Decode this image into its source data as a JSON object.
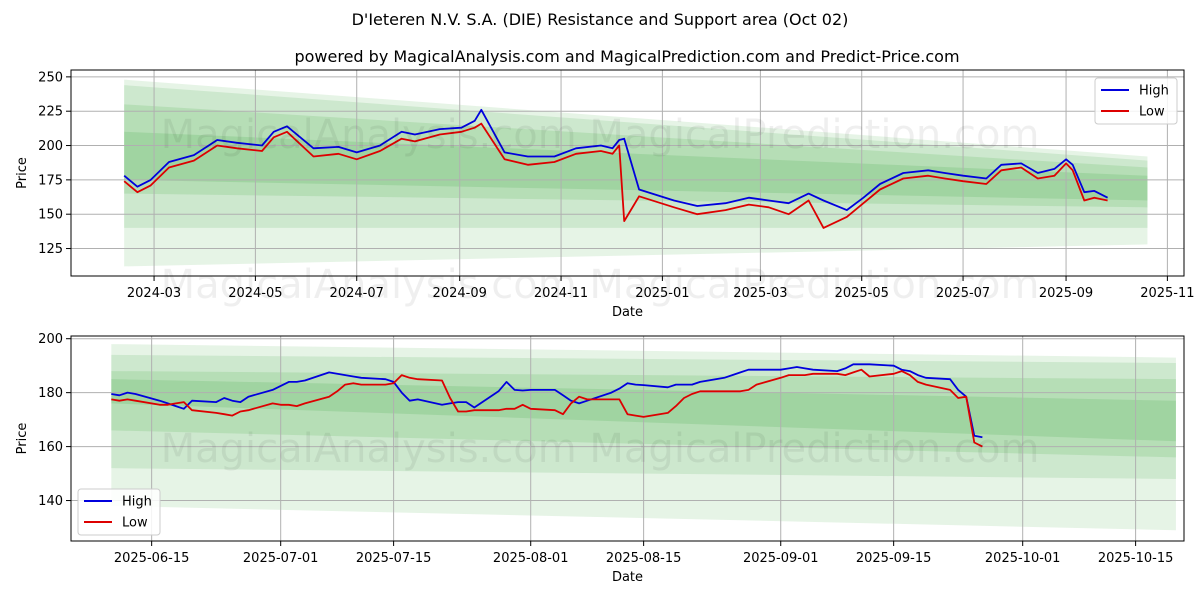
{
  "title": "D'Ieteren N.V. S.A. (DIE) Resistance and Support area (Oct 02)",
  "subtitle": "powered by MagicalAnalysis.com and MagicalPrediction.com and Predict-Price.com",
  "watermark": "MagicalAnalysis.com    MagicalPrediction.com",
  "colors": {
    "high": "#0000dd",
    "low": "#dd0000",
    "band": "#4caf50",
    "grid": "#b0b0b0"
  },
  "chart_data": [
    {
      "type": "line",
      "xlabel": "Date",
      "ylabel": "Price",
      "x_type": "date",
      "xlim": [
        "2024-01-11",
        "2025-11-11"
      ],
      "ylim": [
        105,
        255
      ],
      "x_ticks": [
        "2024-03",
        "2024-05",
        "2024-07",
        "2024-09",
        "2024-11",
        "2025-01",
        "2025-03",
        "2025-05",
        "2025-07",
        "2025-09",
        "2025-11"
      ],
      "x_tick_dates": [
        "2024-03-01",
        "2024-05-01",
        "2024-07-01",
        "2024-09-01",
        "2024-11-01",
        "2025-01-01",
        "2025-03-01",
        "2025-05-01",
        "2025-07-01",
        "2025-09-01",
        "2025-11-01"
      ],
      "y_ticks": [
        125,
        150,
        175,
        200,
        225,
        250
      ],
      "grid": true,
      "legend": "top-right",
      "bands": [
        {
          "x": [
            "2024-02-12",
            "2025-10-20"
          ],
          "upper": [
            248,
            192
          ],
          "lower": [
            112,
            128
          ],
          "opacity": 0.14
        },
        {
          "x": [
            "2024-02-12",
            "2025-10-20"
          ],
          "upper": [
            244,
            189
          ],
          "lower": [
            140,
            140
          ],
          "opacity": 0.16
        },
        {
          "x": [
            "2024-02-12",
            "2025-10-20"
          ],
          "upper": [
            230,
            184
          ],
          "lower": [
            165,
            155
          ],
          "opacity": 0.18
        },
        {
          "x": [
            "2024-02-12",
            "2025-10-20"
          ],
          "upper": [
            210,
            178
          ],
          "lower": [
            175,
            160
          ],
          "opacity": 0.2
        }
      ],
      "series": [
        {
          "name": "High",
          "color": "#0000dd",
          "x": [
            "2024-02-12",
            "2024-02-20",
            "2024-02-28",
            "2024-03-10",
            "2024-03-25",
            "2024-04-08",
            "2024-04-20",
            "2024-05-05",
            "2024-05-12",
            "2024-05-20",
            "2024-06-05",
            "2024-06-20",
            "2024-07-01",
            "2024-07-15",
            "2024-07-28",
            "2024-08-05",
            "2024-08-20",
            "2024-09-02",
            "2024-09-10",
            "2024-09-14",
            "2024-09-28",
            "2024-10-12",
            "2024-10-28",
            "2024-11-10",
            "2024-11-25",
            "2024-12-02",
            "2024-12-06",
            "2024-12-09",
            "2024-12-18",
            "2025-01-08",
            "2025-01-22",
            "2025-02-08",
            "2025-02-22",
            "2025-03-06",
            "2025-03-18",
            "2025-03-30",
            "2025-04-08",
            "2025-04-22",
            "2025-05-02",
            "2025-05-12",
            "2025-05-26",
            "2025-06-10",
            "2025-06-20",
            "2025-07-01",
            "2025-07-15",
            "2025-07-24",
            "2025-08-05",
            "2025-08-15",
            "2025-08-25",
            "2025-09-01",
            "2025-09-05",
            "2025-09-12",
            "2025-09-18",
            "2025-09-26"
          ],
          "values": [
            178,
            170,
            175,
            188,
            193,
            204,
            202,
            200,
            210,
            214,
            198,
            199,
            195,
            200,
            210,
            208,
            212,
            213,
            218,
            226,
            195,
            192,
            192,
            198,
            200,
            198,
            204,
            205,
            168,
            160,
            156,
            158,
            162,
            160,
            158,
            165,
            160,
            153,
            162,
            172,
            180,
            182,
            180,
            178,
            176,
            186,
            187,
            180,
            183,
            190,
            186,
            166,
            167,
            162
          ]
        },
        {
          "name": "Low",
          "color": "#dd0000",
          "x": [
            "2024-02-12",
            "2024-02-20",
            "2024-02-28",
            "2024-03-10",
            "2024-03-25",
            "2024-04-08",
            "2024-04-20",
            "2024-05-05",
            "2024-05-12",
            "2024-05-20",
            "2024-06-05",
            "2024-06-20",
            "2024-07-01",
            "2024-07-15",
            "2024-07-28",
            "2024-08-05",
            "2024-08-20",
            "2024-09-02",
            "2024-09-10",
            "2024-09-14",
            "2024-09-28",
            "2024-10-12",
            "2024-10-28",
            "2024-11-10",
            "2024-11-25",
            "2024-12-02",
            "2024-12-06",
            "2024-12-09",
            "2024-12-18",
            "2025-01-08",
            "2025-01-22",
            "2025-02-08",
            "2025-02-22",
            "2025-03-06",
            "2025-03-18",
            "2025-03-30",
            "2025-04-08",
            "2025-04-22",
            "2025-05-02",
            "2025-05-12",
            "2025-05-26",
            "2025-06-10",
            "2025-06-20",
            "2025-07-01",
            "2025-07-15",
            "2025-07-24",
            "2025-08-05",
            "2025-08-15",
            "2025-08-25",
            "2025-09-01",
            "2025-09-05",
            "2025-09-12",
            "2025-09-18",
            "2025-09-26"
          ],
          "values": [
            174,
            166,
            171,
            184,
            189,
            200,
            198,
            196,
            206,
            210,
            192,
            194,
            190,
            196,
            205,
            203,
            208,
            210,
            213,
            216,
            190,
            186,
            188,
            194,
            196,
            194,
            200,
            145,
            163,
            155,
            150,
            153,
            157,
            155,
            150,
            160,
            140,
            148,
            158,
            168,
            176,
            178,
            176,
            174,
            172,
            182,
            184,
            176,
            178,
            187,
            182,
            160,
            162,
            160
          ]
        }
      ]
    },
    {
      "type": "line",
      "xlabel": "Date",
      "ylabel": "Price",
      "x_type": "date",
      "xlim": [
        "2025-06-05",
        "2025-10-21"
      ],
      "ylim": [
        125,
        201
      ],
      "x_ticks": [
        "2025-06-15",
        "2025-07-01",
        "2025-07-15",
        "2025-08-01",
        "2025-08-15",
        "2025-09-01",
        "2025-09-15",
        "2025-10-01",
        "2025-10-15"
      ],
      "y_ticks": [
        140,
        160,
        180,
        200
      ],
      "grid": true,
      "legend": "bottom-left",
      "bands": [
        {
          "x": [
            "2025-06-10",
            "2025-10-20"
          ],
          "upper": [
            198,
            193
          ],
          "lower": [
            138,
            129
          ],
          "opacity": 0.14
        },
        {
          "x": [
            "2025-06-10",
            "2025-10-20"
          ],
          "upper": [
            194,
            191
          ],
          "lower": [
            152,
            148
          ],
          "opacity": 0.16
        },
        {
          "x": [
            "2025-06-10",
            "2025-10-20"
          ],
          "upper": [
            188,
            185
          ],
          "lower": [
            166,
            156
          ],
          "opacity": 0.18
        },
        {
          "x": [
            "2025-06-10",
            "2025-10-20"
          ],
          "upper": [
            185,
            177
          ],
          "lower": [
            176,
            162
          ],
          "opacity": 0.2
        }
      ],
      "series": [
        {
          "name": "High",
          "color": "#0000dd",
          "x": [
            "2025-06-10",
            "2025-06-11",
            "2025-06-12",
            "2025-06-13",
            "2025-06-16",
            "2025-06-17",
            "2025-06-18",
            "2025-06-19",
            "2025-06-20",
            "2025-06-23",
            "2025-06-24",
            "2025-06-25",
            "2025-06-26",
            "2025-06-27",
            "2025-06-30",
            "2025-07-01",
            "2025-07-02",
            "2025-07-03",
            "2025-07-04",
            "2025-07-07",
            "2025-07-08",
            "2025-07-09",
            "2025-07-10",
            "2025-07-11",
            "2025-07-14",
            "2025-07-15",
            "2025-07-16",
            "2025-07-17",
            "2025-07-18",
            "2025-07-21",
            "2025-07-22",
            "2025-07-23",
            "2025-07-24",
            "2025-07-25",
            "2025-07-28",
            "2025-07-29",
            "2025-07-30",
            "2025-07-31",
            "2025-08-01",
            "2025-08-04",
            "2025-08-05",
            "2025-08-06",
            "2025-08-07",
            "2025-08-08",
            "2025-08-11",
            "2025-08-12",
            "2025-08-13",
            "2025-08-14",
            "2025-08-15",
            "2025-08-18",
            "2025-08-19",
            "2025-08-20",
            "2025-08-21",
            "2025-08-22",
            "2025-08-25",
            "2025-08-26",
            "2025-08-27",
            "2025-08-28",
            "2025-08-29",
            "2025-09-01",
            "2025-09-02",
            "2025-09-03",
            "2025-09-04",
            "2025-09-05",
            "2025-09-08",
            "2025-09-09",
            "2025-09-10",
            "2025-09-11",
            "2025-09-12",
            "2025-09-15",
            "2025-09-16",
            "2025-09-17",
            "2025-09-18",
            "2025-09-19",
            "2025-09-22",
            "2025-09-23",
            "2025-09-24",
            "2025-09-25",
            "2025-09-26"
          ],
          "values": [
            179.5,
            179,
            180,
            179.5,
            177,
            176,
            175,
            174,
            177,
            176.5,
            178,
            177,
            176.5,
            178.5,
            181,
            182.5,
            184,
            184,
            184.5,
            187.5,
            187,
            186.5,
            186,
            185.5,
            185,
            184,
            180,
            177,
            177.5,
            175.5,
            176,
            176.5,
            176.5,
            174.5,
            180.5,
            184,
            181,
            180.8,
            181,
            181,
            179,
            177,
            176,
            177,
            180,
            181.5,
            183.5,
            183,
            182.8,
            182,
            183,
            183,
            183,
            184,
            185.5,
            186.5,
            187.5,
            188.5,
            188.5,
            188.5,
            189,
            189.5,
            189,
            188.5,
            188,
            189,
            190.5,
            190.5,
            190.5,
            190,
            188.5,
            188,
            186.5,
            185.5,
            185,
            181,
            178.5,
            164,
            163.5
          ]
        },
        {
          "name": "Low",
          "color": "#dd0000",
          "x": [
            "2025-06-10",
            "2025-06-11",
            "2025-06-12",
            "2025-06-13",
            "2025-06-16",
            "2025-06-17",
            "2025-06-18",
            "2025-06-19",
            "2025-06-20",
            "2025-06-23",
            "2025-06-24",
            "2025-06-25",
            "2025-06-26",
            "2025-06-27",
            "2025-06-30",
            "2025-07-01",
            "2025-07-02",
            "2025-07-03",
            "2025-07-04",
            "2025-07-07",
            "2025-07-08",
            "2025-07-09",
            "2025-07-10",
            "2025-07-11",
            "2025-07-14",
            "2025-07-15",
            "2025-07-16",
            "2025-07-17",
            "2025-07-18",
            "2025-07-21",
            "2025-07-22",
            "2025-07-23",
            "2025-07-24",
            "2025-07-25",
            "2025-07-28",
            "2025-07-29",
            "2025-07-30",
            "2025-07-31",
            "2025-08-01",
            "2025-08-04",
            "2025-08-05",
            "2025-08-06",
            "2025-08-07",
            "2025-08-08",
            "2025-08-11",
            "2025-08-12",
            "2025-08-13",
            "2025-08-14",
            "2025-08-15",
            "2025-08-18",
            "2025-08-19",
            "2025-08-20",
            "2025-08-21",
            "2025-08-22",
            "2025-08-25",
            "2025-08-26",
            "2025-08-27",
            "2025-08-28",
            "2025-08-29",
            "2025-09-01",
            "2025-09-02",
            "2025-09-03",
            "2025-09-04",
            "2025-09-05",
            "2025-09-08",
            "2025-09-09",
            "2025-09-10",
            "2025-09-11",
            "2025-09-12",
            "2025-09-15",
            "2025-09-16",
            "2025-09-17",
            "2025-09-18",
            "2025-09-19",
            "2025-09-22",
            "2025-09-23",
            "2025-09-24",
            "2025-09-25",
            "2025-09-26"
          ],
          "values": [
            177.5,
            177,
            177.5,
            177,
            175.5,
            175.5,
            176,
            176.5,
            173.5,
            172.5,
            172,
            171.5,
            173,
            173.5,
            176,
            175.5,
            175.5,
            175,
            176,
            178.5,
            180.5,
            183,
            183.5,
            183,
            183,
            183.5,
            186.5,
            185.5,
            185,
            184.5,
            178,
            173,
            173,
            173.5,
            173.5,
            174,
            174,
            175.5,
            174,
            173.5,
            172,
            176,
            178.5,
            177.5,
            177.5,
            177.5,
            172,
            171.5,
            171,
            172.5,
            175,
            178,
            179.5,
            180.5,
            180.5,
            180.5,
            180.5,
            181,
            183,
            185.5,
            186.5,
            186.5,
            186.5,
            187,
            187,
            186.5,
            187.5,
            188.5,
            186,
            187,
            188,
            186.5,
            184,
            183,
            181,
            178,
            178.5,
            161.5,
            160
          ]
        }
      ]
    }
  ]
}
